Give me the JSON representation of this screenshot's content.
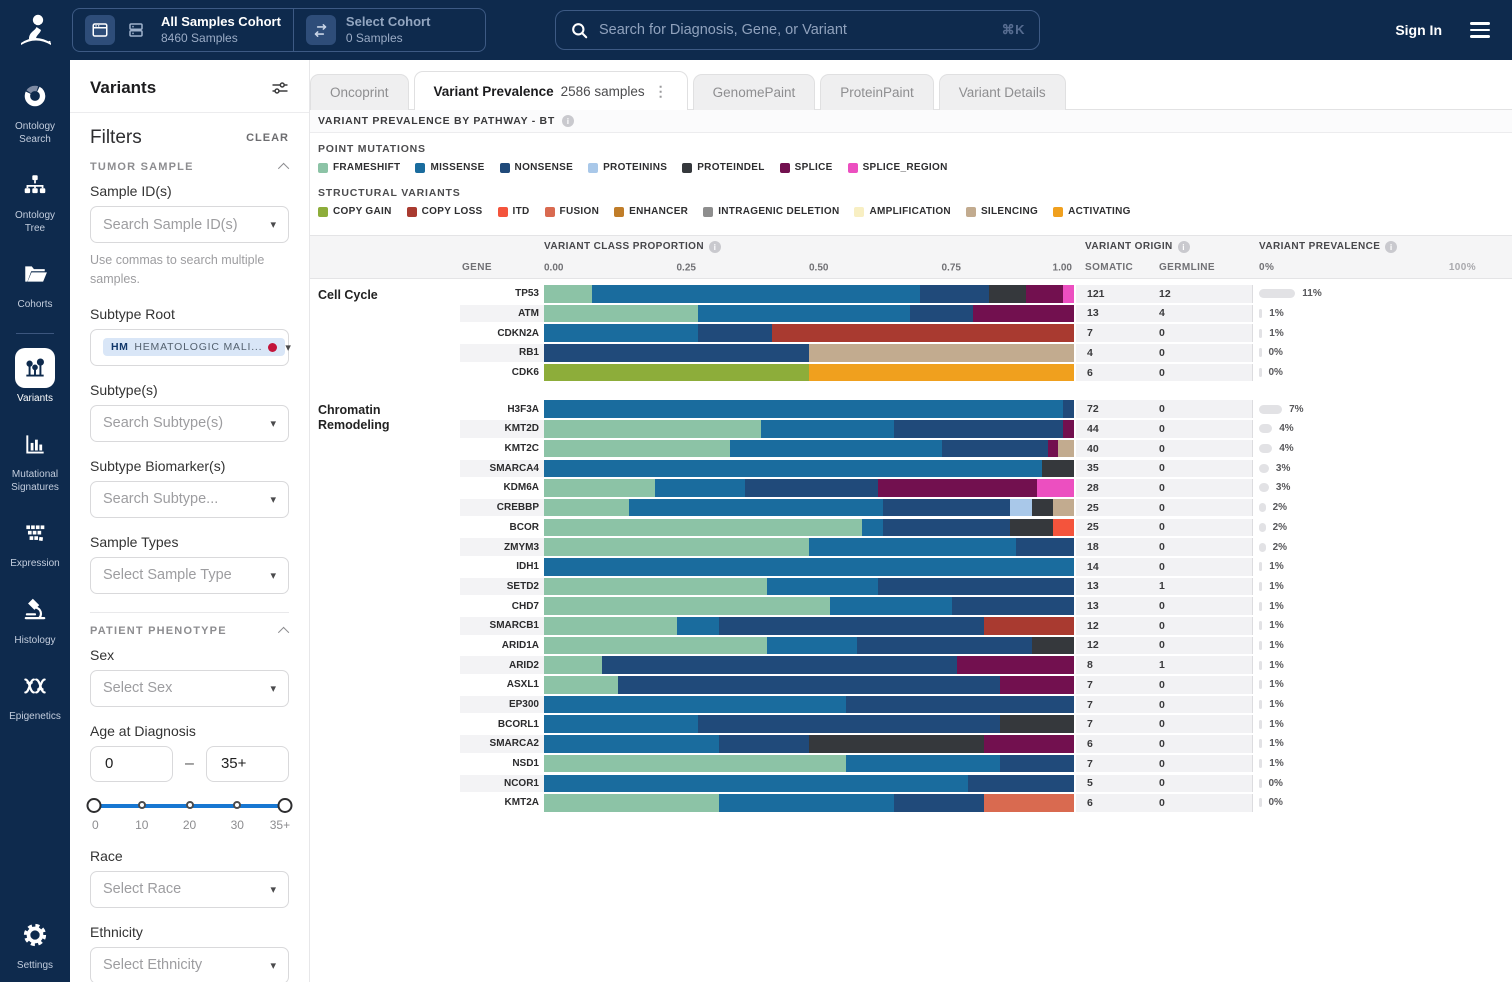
{
  "navbar": {
    "cohort_switcher": {
      "active_cohort": {
        "name": "All Samples Cohort",
        "samples": "8460 Samples"
      },
      "secondary_cohort": {
        "name": "Select Cohort",
        "samples": "0 Samples"
      }
    },
    "search": {
      "placeholder": "Search for Diagnosis, Gene, or Variant",
      "shortcut": "⌘K"
    },
    "sign_in": "Sign In"
  },
  "sidebar": {
    "items": [
      {
        "label": "Ontology Search",
        "icon": "donut-chart-icon",
        "active": false
      },
      {
        "label": "Ontology Tree",
        "icon": "tree-icon",
        "active": false
      },
      {
        "label": "Cohorts",
        "icon": "folder-icon",
        "active": false
      },
      {
        "label": "Variants",
        "icon": "lollipop-icon",
        "active": true
      },
      {
        "label": "Mutational Signatures",
        "icon": "bar-chart-icon",
        "active": false
      },
      {
        "label": "Expression",
        "icon": "heatmap-icon",
        "active": false
      },
      {
        "label": "Histology",
        "icon": "microscope-icon",
        "active": false
      },
      {
        "label": "Epigenetics",
        "icon": "dna-icon",
        "active": false
      }
    ],
    "settings": {
      "label": "Settings",
      "icon": "gear-icon"
    }
  },
  "filters": {
    "panel_title": "Variants",
    "title": "Filters",
    "clear_label": "CLEAR",
    "tumor_sample": {
      "title": "TUMOR SAMPLE",
      "sample_ids": {
        "label": "Sample ID(s)",
        "placeholder": "Search Sample ID(s)",
        "hint": "Use commas to search multiple samples."
      },
      "subtype_root": {
        "label": "Subtype Root",
        "chip_code": "HM",
        "chip_label": "HEMATOLOGIC MALI..."
      },
      "subtypes": {
        "label": "Subtype(s)",
        "placeholder": "Search Subtype(s)"
      },
      "subtype_biomarkers": {
        "label": "Subtype Biomarker(s)",
        "placeholder": "Search Subtype..."
      },
      "sample_types": {
        "label": "Sample Types",
        "placeholder": "Select Sample Type"
      }
    },
    "patient_phenotype": {
      "title": "PATIENT PHENOTYPE",
      "sex": {
        "label": "Sex",
        "placeholder": "Select Sex"
      },
      "age": {
        "label": "Age at Diagnosis",
        "min_value": "0",
        "max_value": "35+",
        "ticks": [
          "0",
          "10",
          "20",
          "30",
          "35+"
        ]
      },
      "race": {
        "label": "Race",
        "placeholder": "Select Race"
      },
      "ethnicity": {
        "label": "Ethnicity",
        "placeholder": "Select Ethnicity"
      }
    }
  },
  "tabs": [
    {
      "label": "Oncoprint",
      "active": false
    },
    {
      "label": "Variant Prevalence",
      "badge": "2586 samples",
      "active": true,
      "has_menu": true
    },
    {
      "label": "GenomePaint",
      "active": false
    },
    {
      "label": "ProteinPaint",
      "active": false
    },
    {
      "label": "Variant Details",
      "active": false
    }
  ],
  "section_title": "VARIANT PREVALENCE BY PATHWAY - BT",
  "legend": {
    "point_mutations": {
      "title": "POINT MUTATIONS",
      "items": [
        {
          "label": "FRAMESHIFT",
          "color": "#8CC3A6"
        },
        {
          "label": "MISSENSE",
          "color": "#1A6C9E"
        },
        {
          "label": "NONSENSE",
          "color": "#204A7A"
        },
        {
          "label": "PROTEININS",
          "color": "#A9C8E9"
        },
        {
          "label": "PROTEINDEL",
          "color": "#35383C"
        },
        {
          "label": "SPLICE",
          "color": "#72104F"
        },
        {
          "label": "SPLICE_REGION",
          "color": "#EC4FC0"
        }
      ]
    },
    "structural_variants": {
      "title": "STRUCTURAL VARIANTS",
      "items": [
        {
          "label": "COPY GAIN",
          "color": "#8DAD3A"
        },
        {
          "label": "COPY LOSS",
          "color": "#A93A30"
        },
        {
          "label": "ITD",
          "color": "#F4543C"
        },
        {
          "label": "FUSION",
          "color": "#D96A50"
        },
        {
          "label": "ENHANCER",
          "color": "#C07D29"
        },
        {
          "label": "INTRAGENIC DELETION",
          "color": "#8E8E8E"
        },
        {
          "label": "AMPLIFICATION",
          "color": "#F8EFC3"
        },
        {
          "label": "SILENCING",
          "color": "#C2AB8F"
        },
        {
          "label": "ACTIVATING",
          "color": "#F0A01E"
        }
      ]
    }
  },
  "table_headers": {
    "gene": "GENE",
    "class_proportion": "VARIANT CLASS PROPORTION",
    "origin": "VARIANT ORIGIN",
    "somatic": "SOMATIC",
    "germline": "GERMLINE",
    "prevalence": "VARIANT PREVALENCE",
    "prev_min": "0%",
    "prev_max": "100%"
  },
  "chart_data": {
    "type": "bar",
    "subtype": "stacked-horizontal-proportion",
    "axis_ticks": [
      "0.00",
      "0.25",
      "0.50",
      "0.75",
      "1.00"
    ],
    "xlim": [
      0,
      1
    ],
    "class_colors": {
      "FRAMESHIFT": "#8CC3A6",
      "MISSENSE": "#1A6C9E",
      "NONSENSE": "#204A7A",
      "PROTEININS": "#A9C8E9",
      "PROTEINDEL": "#35383C",
      "SPLICE": "#72104F",
      "SPLICE_REGION": "#EC4FC0",
      "COPY_GAIN": "#8DAD3A",
      "COPY_LOSS": "#A93A30",
      "ITD": "#F4543C",
      "FUSION": "#D96A50",
      "ENHANCER": "#C07D29",
      "INTRAGENIC_DELETION": "#8E8E8E",
      "AMPLIFICATION": "#F8EFC3",
      "SILENCING": "#C2AB8F",
      "ACTIVATING": "#F0A01E"
    },
    "pathways": [
      {
        "name": "Cell Cycle",
        "genes": [
          {
            "gene": "TP53",
            "segments": [
              [
                "FRAMESHIFT",
                0.09
              ],
              [
                "MISSENSE",
                0.62
              ],
              [
                "NONSENSE",
                0.13
              ],
              [
                "PROTEINDEL",
                0.07
              ],
              [
                "SPLICE",
                0.07
              ],
              [
                "SPLICE_REGION",
                0.02
              ]
            ],
            "somatic": 121,
            "germline": 12,
            "prevalence_pct": 11,
            "prevalence_label": "11%"
          },
          {
            "gene": "ATM",
            "segments": [
              [
                "FRAMESHIFT",
                0.29
              ],
              [
                "MISSENSE",
                0.4
              ],
              [
                "NONSENSE",
                0.12
              ],
              [
                "SPLICE",
                0.19
              ]
            ],
            "somatic": 13,
            "germline": 4,
            "prevalence_pct": 1,
            "prevalence_label": "1%"
          },
          {
            "gene": "CDKN2A",
            "segments": [
              [
                "MISSENSE",
                0.29
              ],
              [
                "NONSENSE",
                0.14
              ],
              [
                "COPY_LOSS",
                0.57
              ]
            ],
            "somatic": 7,
            "germline": 0,
            "prevalence_pct": 1,
            "prevalence_label": "1%"
          },
          {
            "gene": "RB1",
            "segments": [
              [
                "NONSENSE",
                0.5
              ],
              [
                "SILENCING",
                0.5
              ]
            ],
            "somatic": 4,
            "germline": 0,
            "prevalence_pct": 0,
            "prevalence_label": "0%"
          },
          {
            "gene": "CDK6",
            "segments": [
              [
                "COPY_GAIN",
                0.5
              ],
              [
                "ACTIVATING",
                0.5
              ]
            ],
            "somatic": 6,
            "germline": 0,
            "prevalence_pct": 0,
            "prevalence_label": "0%"
          }
        ]
      },
      {
        "name": "Chromatin Remodeling",
        "genes": [
          {
            "gene": "H3F3A",
            "segments": [
              [
                "MISSENSE",
                0.98
              ],
              [
                "NONSENSE",
                0.02
              ]
            ],
            "somatic": 72,
            "germline": 0,
            "prevalence_pct": 7,
            "prevalence_label": "7%"
          },
          {
            "gene": "KMT2D",
            "segments": [
              [
                "FRAMESHIFT",
                0.41
              ],
              [
                "MISSENSE",
                0.25
              ],
              [
                "NONSENSE",
                0.32
              ],
              [
                "SPLICE",
                0.02
              ]
            ],
            "somatic": 44,
            "germline": 0,
            "prevalence_pct": 4,
            "prevalence_label": "4%"
          },
          {
            "gene": "KMT2C",
            "segments": [
              [
                "FRAMESHIFT",
                0.35
              ],
              [
                "MISSENSE",
                0.4
              ],
              [
                "NONSENSE",
                0.2
              ],
              [
                "SPLICE",
                0.02
              ],
              [
                "SILENCING",
                0.03
              ]
            ],
            "somatic": 40,
            "germline": 0,
            "prevalence_pct": 4,
            "prevalence_label": "4%"
          },
          {
            "gene": "SMARCA4",
            "segments": [
              [
                "MISSENSE",
                0.94
              ],
              [
                "PROTEINDEL",
                0.06
              ]
            ],
            "somatic": 35,
            "germline": 0,
            "prevalence_pct": 3,
            "prevalence_label": "3%"
          },
          {
            "gene": "KDM6A",
            "segments": [
              [
                "FRAMESHIFT",
                0.21
              ],
              [
                "MISSENSE",
                0.17
              ],
              [
                "NONSENSE",
                0.25
              ],
              [
                "SPLICE",
                0.3
              ],
              [
                "SPLICE_REGION",
                0.07
              ]
            ],
            "somatic": 28,
            "germline": 0,
            "prevalence_pct": 3,
            "prevalence_label": "3%"
          },
          {
            "gene": "CREBBP",
            "segments": [
              [
                "FRAMESHIFT",
                0.16
              ],
              [
                "MISSENSE",
                0.48
              ],
              [
                "NONSENSE",
                0.24
              ],
              [
                "PROTEININS",
                0.04
              ],
              [
                "PROTEINDEL",
                0.04
              ],
              [
                "SILENCING",
                0.04
              ]
            ],
            "somatic": 25,
            "germline": 0,
            "prevalence_pct": 2,
            "prevalence_label": "2%"
          },
          {
            "gene": "BCOR",
            "segments": [
              [
                "FRAMESHIFT",
                0.6
              ],
              [
                "MISSENSE",
                0.04
              ],
              [
                "NONSENSE",
                0.24
              ],
              [
                "PROTEINDEL",
                0.08
              ],
              [
                "ITD",
                0.04
              ]
            ],
            "somatic": 25,
            "germline": 0,
            "prevalence_pct": 2,
            "prevalence_label": "2%"
          },
          {
            "gene": "ZMYM3",
            "segments": [
              [
                "FRAMESHIFT",
                0.5
              ],
              [
                "MISSENSE",
                0.39
              ],
              [
                "NONSENSE",
                0.11
              ]
            ],
            "somatic": 18,
            "germline": 0,
            "prevalence_pct": 2,
            "prevalence_label": "2%"
          },
          {
            "gene": "IDH1",
            "segments": [
              [
                "MISSENSE",
                1.0
              ]
            ],
            "somatic": 14,
            "germline": 0,
            "prevalence_pct": 1,
            "prevalence_label": "1%"
          },
          {
            "gene": "SETD2",
            "segments": [
              [
                "FRAMESHIFT",
                0.42
              ],
              [
                "MISSENSE",
                0.21
              ],
              [
                "NONSENSE",
                0.37
              ]
            ],
            "somatic": 13,
            "germline": 1,
            "prevalence_pct": 1,
            "prevalence_label": "1%"
          },
          {
            "gene": "CHD7",
            "segments": [
              [
                "FRAMESHIFT",
                0.54
              ],
              [
                "MISSENSE",
                0.23
              ],
              [
                "NONSENSE",
                0.23
              ]
            ],
            "somatic": 13,
            "germline": 0,
            "prevalence_pct": 1,
            "prevalence_label": "1%"
          },
          {
            "gene": "SMARCB1",
            "segments": [
              [
                "FRAMESHIFT",
                0.25
              ],
              [
                "MISSENSE",
                0.08
              ],
              [
                "NONSENSE",
                0.5
              ],
              [
                "COPY_LOSS",
                0.17
              ]
            ],
            "somatic": 12,
            "germline": 0,
            "prevalence_pct": 1,
            "prevalence_label": "1%"
          },
          {
            "gene": "ARID1A",
            "segments": [
              [
                "FRAMESHIFT",
                0.42
              ],
              [
                "MISSENSE",
                0.17
              ],
              [
                "NONSENSE",
                0.33
              ],
              [
                "PROTEINDEL",
                0.08
              ]
            ],
            "somatic": 12,
            "germline": 0,
            "prevalence_pct": 1,
            "prevalence_label": "1%"
          },
          {
            "gene": "ARID2",
            "segments": [
              [
                "FRAMESHIFT",
                0.11
              ],
              [
                "NONSENSE",
                0.67
              ],
              [
                "SPLICE",
                0.22
              ]
            ],
            "somatic": 8,
            "germline": 1,
            "prevalence_pct": 1,
            "prevalence_label": "1%"
          },
          {
            "gene": "ASXL1",
            "segments": [
              [
                "FRAMESHIFT",
                0.14
              ],
              [
                "NONSENSE",
                0.72
              ],
              [
                "SPLICE",
                0.14
              ]
            ],
            "somatic": 7,
            "germline": 0,
            "prevalence_pct": 1,
            "prevalence_label": "1%"
          },
          {
            "gene": "EP300",
            "segments": [
              [
                "MISSENSE",
                0.57
              ],
              [
                "NONSENSE",
                0.43
              ]
            ],
            "somatic": 7,
            "germline": 0,
            "prevalence_pct": 1,
            "prevalence_label": "1%"
          },
          {
            "gene": "BCORL1",
            "segments": [
              [
                "MISSENSE",
                0.29
              ],
              [
                "NONSENSE",
                0.57
              ],
              [
                "PROTEINDEL",
                0.14
              ]
            ],
            "somatic": 7,
            "germline": 0,
            "prevalence_pct": 1,
            "prevalence_label": "1%"
          },
          {
            "gene": "SMARCA2",
            "segments": [
              [
                "MISSENSE",
                0.33
              ],
              [
                "NONSENSE",
                0.17
              ],
              [
                "PROTEINDEL",
                0.33
              ],
              [
                "SPLICE",
                0.17
              ]
            ],
            "somatic": 6,
            "germline": 0,
            "prevalence_pct": 1,
            "prevalence_label": "1%"
          },
          {
            "gene": "NSD1",
            "segments": [
              [
                "FRAMESHIFT",
                0.57
              ],
              [
                "MISSENSE",
                0.29
              ],
              [
                "NONSENSE",
                0.14
              ]
            ],
            "somatic": 7,
            "germline": 0,
            "prevalence_pct": 1,
            "prevalence_label": "1%"
          },
          {
            "gene": "NCOR1",
            "segments": [
              [
                "MISSENSE",
                0.8
              ],
              [
                "NONSENSE",
                0.2
              ]
            ],
            "somatic": 5,
            "germline": 0,
            "prevalence_pct": 0,
            "prevalence_label": "0%"
          },
          {
            "gene": "KMT2A",
            "segments": [
              [
                "FRAMESHIFT",
                0.33
              ],
              [
                "MISSENSE",
                0.33
              ],
              [
                "NONSENSE",
                0.17
              ],
              [
                "FUSION",
                0.17
              ]
            ],
            "somatic": 6,
            "germline": 0,
            "prevalence_pct": 0,
            "prevalence_label": "0%"
          }
        ]
      }
    ]
  }
}
